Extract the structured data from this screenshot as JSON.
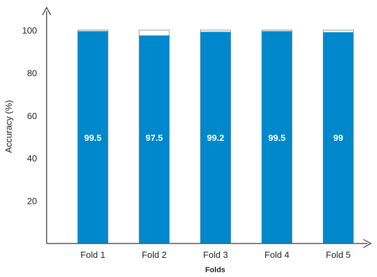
{
  "chart_data": {
    "type": "bar",
    "categories": [
      "Fold 1",
      "Fold 2",
      "Fold 3",
      "Fold 4",
      "Fold 5"
    ],
    "series": [
      {
        "values": [
          99.5,
          97.5,
          99.2,
          99.5,
          99
        ]
      }
    ],
    "data_labels": [
      "99.5",
      "97.5",
      "99.2",
      "99.5",
      "99"
    ],
    "capacity": 100,
    "xlabel": "Folds",
    "ylabel": "Accuracy (%)",
    "ylim": [
      0,
      115
    ],
    "yticks": [
      20,
      40,
      60,
      80,
      100
    ],
    "grid": false,
    "legend": "none",
    "colors": {
      "bar_fill": "#0088cc",
      "bar_outline": "#9a9a9a",
      "axis": "#555555",
      "text": "#222222",
      "label": "#ffffff"
    }
  }
}
